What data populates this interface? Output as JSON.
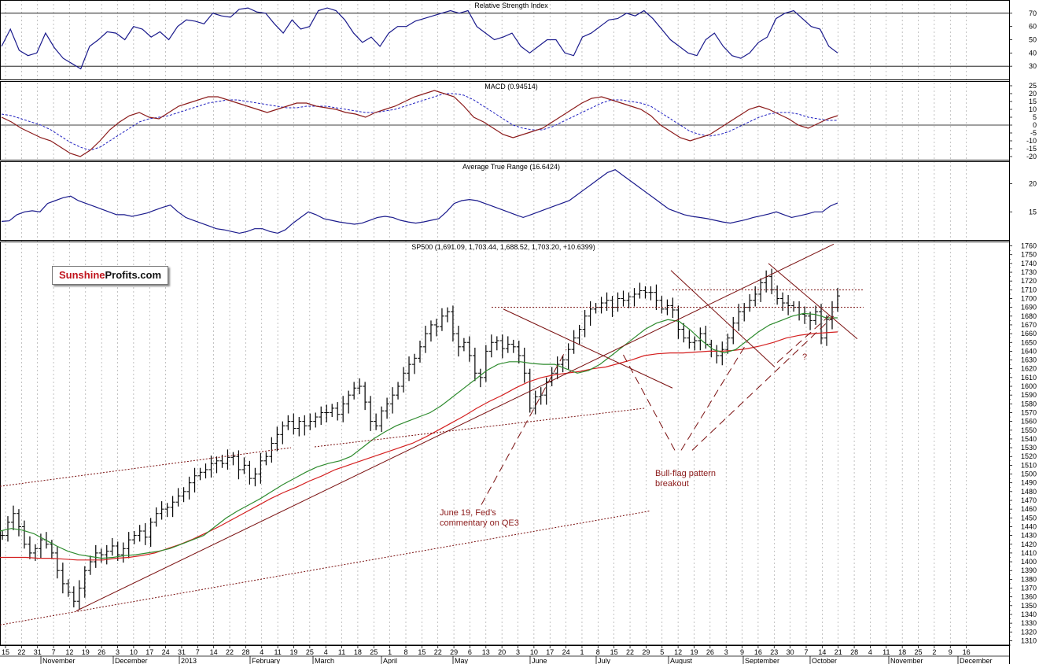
{
  "colors": {
    "price_bar": "#000000",
    "indicator_line": "#1a1a8c",
    "macd_line": "#8b1a1a",
    "macd_signal": "#2020c0",
    "ma_short": "#2e8b2e",
    "ma_long": "#d42020",
    "trendline": "#7a1010",
    "annotation": "#8b1a1a",
    "grid": "#999999",
    "logo_red": "#c0141c"
  },
  "logo": {
    "part1": "Sunshine",
    "part2": "Profits.com"
  },
  "x_axis": {
    "day_labels": [
      "15",
      "22",
      "31",
      "7",
      "12",
      "19",
      "26",
      "3",
      "10",
      "17",
      "24",
      "31",
      "7",
      "14",
      "22",
      "28",
      "4",
      "11",
      "19",
      "25",
      "4",
      "11",
      "18",
      "25",
      "1",
      "8",
      "15",
      "22",
      "29",
      "6",
      "13",
      "20",
      "3",
      "10",
      "17",
      "24",
      "1",
      "8",
      "15",
      "22",
      "29",
      "5",
      "12",
      "19",
      "26",
      "3",
      "9",
      "16",
      "23",
      "30",
      "7",
      "14",
      "21",
      "28",
      "4",
      "11",
      "18",
      "25",
      "2",
      "9",
      "16"
    ],
    "month_labels": [
      "November",
      "December",
      "2013",
      "February",
      "March",
      "April",
      "May",
      "June",
      "July",
      "August",
      "September",
      "October",
      "November",
      "December"
    ]
  },
  "chart_data": [
    {
      "type": "line",
      "panel": "rsi",
      "title": "Relative Strength Index",
      "ylim": [
        20,
        80
      ],
      "y_ticks": [
        30,
        40,
        50,
        60,
        70
      ],
      "reference_lines": [
        30,
        70
      ],
      "series": [
        {
          "values": [
            45,
            58,
            42,
            38,
            40,
            55,
            44,
            36,
            32,
            28,
            45,
            50,
            56,
            55,
            50,
            60,
            58,
            52,
            56,
            50,
            60,
            65,
            64,
            62,
            70,
            68,
            67,
            73,
            74,
            71,
            70,
            62,
            55,
            65,
            58,
            60,
            72,
            74,
            72,
            65,
            55,
            48,
            52,
            45,
            55,
            60,
            60,
            64,
            66,
            68,
            70,
            72,
            70,
            72,
            60,
            55,
            50,
            52,
            55,
            45,
            40,
            45,
            50,
            50,
            40,
            38,
            52,
            55,
            60,
            65,
            66,
            70,
            68,
            72,
            66,
            58,
            50,
            45,
            40,
            38,
            50,
            55,
            45,
            38,
            36,
            40,
            48,
            52,
            66,
            70,
            72,
            66,
            60,
            58,
            45,
            40
          ]
        }
      ]
    },
    {
      "type": "line",
      "panel": "macd",
      "title": "MACD (0.94514)",
      "ylim": [
        -22,
        28
      ],
      "y_ticks": [
        25,
        20,
        15,
        10,
        5,
        0,
        -5,
        -10,
        -15,
        -20
      ],
      "zero_line": 0,
      "series": [
        {
          "name": "MACD",
          "values": [
            5,
            2,
            -2,
            -5,
            -8,
            -10,
            -14,
            -18,
            -20,
            -16,
            -10,
            -3,
            2,
            6,
            8,
            5,
            4,
            8,
            12,
            14,
            16,
            18,
            18,
            16,
            14,
            12,
            10,
            8,
            10,
            12,
            14,
            14,
            12,
            11,
            10,
            8,
            7,
            5,
            8,
            10,
            12,
            15,
            18,
            20,
            22,
            20,
            18,
            12,
            5,
            2,
            -2,
            -6,
            -8,
            -6,
            -4,
            -2,
            2,
            6,
            10,
            14,
            17,
            18,
            16,
            14,
            12,
            10,
            6,
            0,
            -4,
            -8,
            -10,
            -8,
            -6,
            -2,
            2,
            6,
            10,
            12,
            10,
            7,
            4,
            0,
            -2,
            1,
            4,
            6
          ]
        },
        {
          "name": "Signal",
          "values": [
            7,
            6,
            4,
            2,
            0,
            -3,
            -7,
            -11,
            -14,
            -16,
            -14,
            -10,
            -6,
            -2,
            2,
            4,
            5,
            6,
            8,
            10,
            12,
            14,
            15,
            16,
            16,
            15,
            14,
            13,
            12,
            11,
            11,
            12,
            12,
            12,
            11,
            10,
            9,
            8,
            8,
            9,
            10,
            12,
            14,
            16,
            18,
            20,
            20,
            19,
            16,
            12,
            8,
            4,
            0,
            -2,
            -3,
            -3,
            -1,
            2,
            5,
            8,
            11,
            14,
            16,
            16,
            15,
            14,
            12,
            8,
            4,
            0,
            -4,
            -6,
            -7,
            -6,
            -4,
            -1,
            2,
            5,
            7,
            8,
            8,
            7,
            5,
            4,
            3,
            3
          ]
        }
      ]
    },
    {
      "type": "line",
      "panel": "atr",
      "title": "Average True Range (16.6424)",
      "ylim": [
        10,
        24
      ],
      "y_ticks": [
        15,
        20
      ],
      "series": [
        {
          "values": [
            13.3,
            13.4,
            14.5,
            15.0,
            15.2,
            15.0,
            16.5,
            17.0,
            17.5,
            17.8,
            17.0,
            16.5,
            16.0,
            15.5,
            15.0,
            14.5,
            14.5,
            14.2,
            14.5,
            14.8,
            15.3,
            15.8,
            16.2,
            15.0,
            14.0,
            13.5,
            13.0,
            12.5,
            12.0,
            11.8,
            11.5,
            11.2,
            11.5,
            12.0,
            12.0,
            11.5,
            11.2,
            11.8,
            13.0,
            14.0,
            15.0,
            14.5,
            13.8,
            13.5,
            13.2,
            13.0,
            12.8,
            13.0,
            13.5,
            14.0,
            14.2,
            14.0,
            13.5,
            13.2,
            13.0,
            13.2,
            13.5,
            13.8,
            15.0,
            16.5,
            17.0,
            17.2,
            17.0,
            16.5,
            16.0,
            15.5,
            15.0,
            14.5,
            14.0,
            14.5,
            15.0,
            15.5,
            16.0,
            16.5,
            17.0,
            18.0,
            19.0,
            20.0,
            21.0,
            22.0,
            22.5,
            21.5,
            20.5,
            19.5,
            18.5,
            17.5,
            16.5,
            15.5,
            15.0,
            14.5,
            14.2,
            14.0,
            13.8,
            13.5,
            13.2,
            13.0,
            13.3,
            13.6,
            14.0,
            14.3,
            14.6,
            15.0,
            14.5,
            14.0,
            14.3,
            14.6,
            15.0,
            15.0,
            16.0,
            16.6
          ]
        }
      ]
    },
    {
      "type": "bar",
      "panel": "price",
      "title": "SP500 (1,691.09, 1,703.44, 1,688.52, 1,703.20, +10.6399)",
      "ylim": [
        1305,
        1765
      ],
      "y_ticks": [
        1310,
        1320,
        1330,
        1340,
        1350,
        1360,
        1370,
        1380,
        1390,
        1400,
        1410,
        1420,
        1430,
        1440,
        1450,
        1460,
        1470,
        1480,
        1490,
        1500,
        1510,
        1520,
        1530,
        1540,
        1550,
        1560,
        1570,
        1580,
        1590,
        1600,
        1610,
        1620,
        1630,
        1640,
        1650,
        1660,
        1670,
        1680,
        1690,
        1700,
        1710,
        1720,
        1730,
        1740,
        1750,
        1760
      ],
      "close": [
        1430,
        1445,
        1455,
        1440,
        1420,
        1410,
        1415,
        1425,
        1420,
        1410,
        1390,
        1375,
        1365,
        1355,
        1370,
        1390,
        1400,
        1410,
        1408,
        1412,
        1418,
        1408,
        1415,
        1425,
        1430,
        1435,
        1428,
        1445,
        1455,
        1460,
        1462,
        1468,
        1475,
        1480,
        1490,
        1498,
        1502,
        1505,
        1512,
        1515,
        1512,
        1519,
        1520,
        1505,
        1510,
        1495,
        1500,
        1515,
        1520,
        1535,
        1545,
        1555,
        1560,
        1552,
        1560,
        1555,
        1560,
        1565,
        1570,
        1570,
        1575,
        1568,
        1580,
        1590,
        1598,
        1600,
        1582,
        1560,
        1555,
        1572,
        1580,
        1590,
        1600,
        1615,
        1625,
        1632,
        1645,
        1660,
        1670,
        1668,
        1680,
        1685,
        1660,
        1645,
        1650,
        1635,
        1615,
        1610,
        1640,
        1650,
        1652,
        1643,
        1648,
        1645,
        1635,
        1615,
        1575,
        1588,
        1590,
        1605,
        1615,
        1625,
        1630,
        1642,
        1655,
        1665,
        1680,
        1688,
        1690,
        1695,
        1698,
        1690,
        1700,
        1698,
        1702,
        1705,
        1709,
        1707,
        1707,
        1698,
        1688,
        1692,
        1687,
        1665,
        1655,
        1650,
        1652,
        1660,
        1648,
        1640,
        1635,
        1642,
        1655,
        1672,
        1685,
        1690,
        1698,
        1705,
        1718,
        1725,
        1710,
        1700,
        1695,
        1692,
        1690,
        1682,
        1680,
        1675,
        1685,
        1655,
        1676,
        1690,
        1703
      ],
      "ma_short": [
        1435,
        1438,
        1436,
        1432,
        1425,
        1418,
        1412,
        1408,
        1406,
        1404,
        1405,
        1407,
        1408,
        1410,
        1412,
        1415,
        1420,
        1425,
        1430,
        1440,
        1450,
        1458,
        1465,
        1472,
        1480,
        1488,
        1495,
        1502,
        1508,
        1512,
        1515,
        1520,
        1530,
        1540,
        1548,
        1555,
        1560,
        1565,
        1570,
        1578,
        1588,
        1598,
        1608,
        1618,
        1625,
        1628,
        1628,
        1626,
        1625,
        1625,
        1620,
        1615,
        1618,
        1625,
        1635,
        1645,
        1655,
        1665,
        1672,
        1676,
        1674,
        1664,
        1652,
        1642,
        1638,
        1642,
        1652,
        1662,
        1670,
        1675,
        1680,
        1683,
        1682,
        1678,
        1678
      ],
      "ma_long": [
        1405,
        1405,
        1405,
        1404,
        1404,
        1403,
        1402,
        1402,
        1402,
        1404,
        1405,
        1407,
        1410,
        1415,
        1420,
        1426,
        1433,
        1440,
        1448,
        1456,
        1464,
        1472,
        1479,
        1485,
        1492,
        1498,
        1505,
        1510,
        1515,
        1520,
        1525,
        1530,
        1535,
        1542,
        1550,
        1558,
        1566,
        1575,
        1583,
        1590,
        1598,
        1605,
        1610,
        1613,
        1615,
        1617,
        1620,
        1622,
        1626,
        1630,
        1635,
        1637,
        1638,
        1638,
        1639,
        1640,
        1640,
        1641,
        1643,
        1646,
        1650,
        1655,
        1658,
        1660,
        1661,
        1662
      ],
      "annotations": [
        {
          "text": "June 19, Fed's",
          "text2": "commentary on QE3"
        },
        {
          "text": "Bull-flag pattern",
          "text2": "breakout"
        },
        {
          "text": "?"
        }
      ]
    }
  ]
}
